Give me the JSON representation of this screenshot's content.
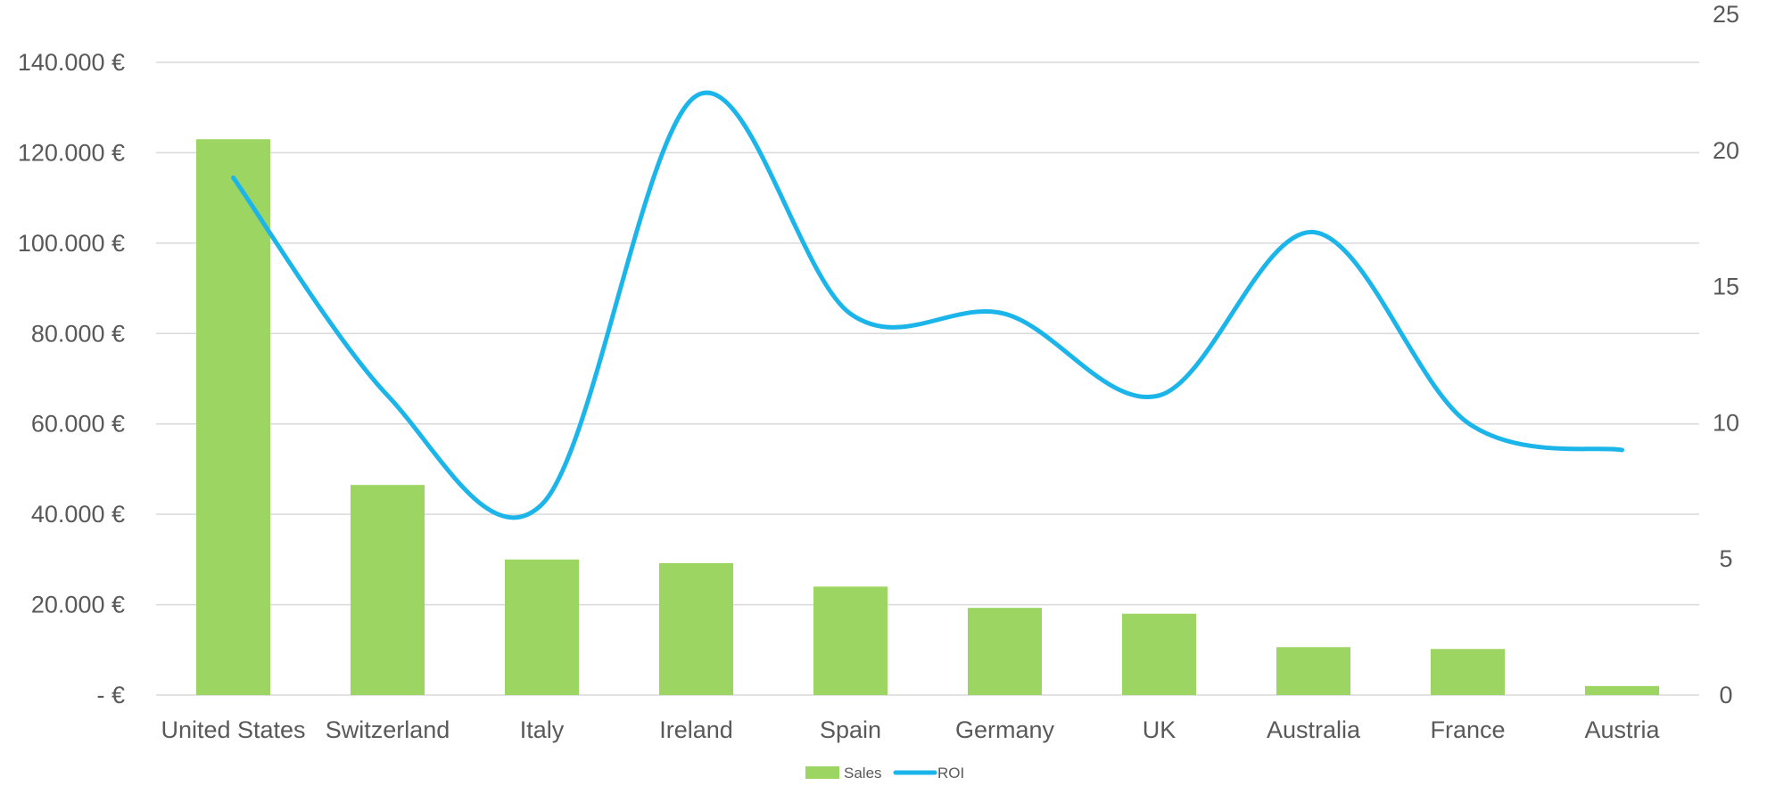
{
  "chart_data": {
    "type": "bar",
    "categories": [
      "United States",
      "Switzerland",
      "Italy",
      "Ireland",
      "Spain",
      "Germany",
      "UK",
      "Australia",
      "France",
      "Austria"
    ],
    "series": [
      {
        "name": "Sales",
        "type": "bar",
        "axis": "left",
        "color": "#9dd563",
        "values": [
          123000,
          46500,
          30000,
          29200,
          24000,
          19300,
          18000,
          10600,
          10200,
          2000
        ]
      },
      {
        "name": "ROI",
        "type": "line",
        "axis": "right",
        "smooth": true,
        "color": "#1cb5ea",
        "values": [
          19,
          11,
          7,
          22,
          14,
          14,
          11,
          17,
          10,
          9
        ]
      }
    ],
    "y_left": {
      "ylim": [
        0,
        140000
      ],
      "ticks": [
        0,
        20000,
        40000,
        60000,
        80000,
        100000,
        120000,
        140000
      ],
      "tick_labels": [
        "-  €",
        "20.000 €",
        "40.000 €",
        "60.000 €",
        "80.000 €",
        "100.000 €",
        "120.000 €",
        "140.000 €"
      ]
    },
    "y_right": {
      "ylim": [
        0,
        25
      ],
      "ticks": [
        0,
        5,
        10,
        15,
        20,
        25
      ],
      "tick_labels": [
        "0",
        "5",
        "10",
        "15",
        "20",
        "25"
      ]
    },
    "grid": true,
    "legend": {
      "position": "bottom",
      "entries": [
        {
          "label": "Sales",
          "color": "#9dd563",
          "marker": "bar"
        },
        {
          "label": "ROI",
          "color": "#1cb5ea",
          "marker": "line"
        }
      ]
    },
    "title": "",
    "xlabel": "",
    "ylabel": ""
  }
}
